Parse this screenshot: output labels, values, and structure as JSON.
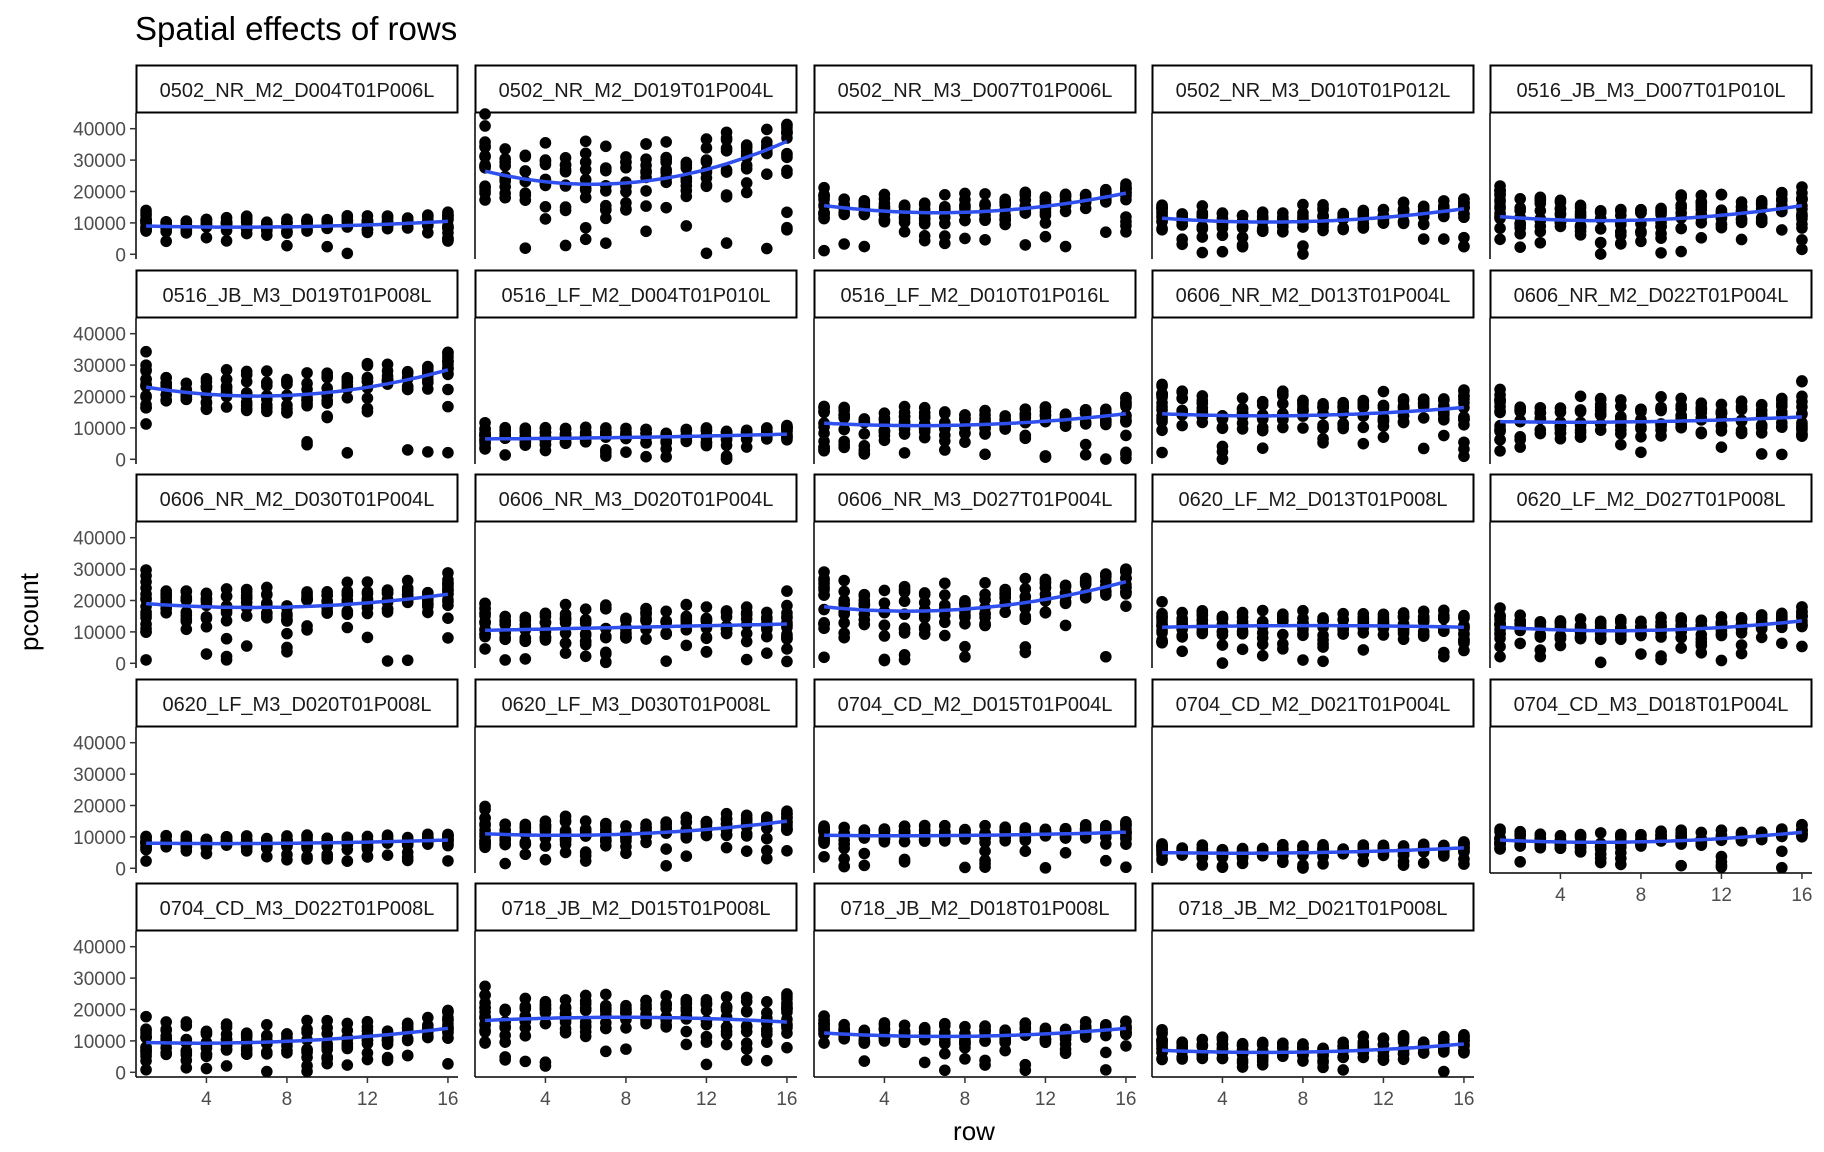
{
  "chart_data": {
    "type": "scatter",
    "title": "Spatial effects of rows",
    "xlabel": "row",
    "ylabel": "pcount",
    "xlim": [
      0.5,
      16.5
    ],
    "ylim": [
      -1500,
      45000
    ],
    "x_ticks": [
      4,
      8,
      12,
      16
    ],
    "y_ticks": [
      0,
      10000,
      20000,
      30000,
      40000
    ],
    "y_tick_labels": [
      "0",
      "10000",
      "20000",
      "30000",
      "40000"
    ],
    "smooth_color": "#3050ee",
    "point_color": "#000000",
    "facets": [
      {
        "label": "0502_NR_M2_D004T01P006L",
        "trend": [
          9000,
          8800,
          10500
        ],
        "max": 14000,
        "min": 0
      },
      {
        "label": "0502_NR_M2_D019T01P004L",
        "trend": [
          26500,
          23000,
          36000
        ],
        "max": 45000,
        "min": 0
      },
      {
        "label": "0502_NR_M3_D007T01P006L",
        "trend": [
          15500,
          13500,
          19500
        ],
        "max": 23000,
        "min": 1000
      },
      {
        "label": "0502_NR_M3_D010T01P012L",
        "trend": [
          11500,
          10500,
          14500
        ],
        "max": 19000,
        "min": 0
      },
      {
        "label": "0516_JB_M3_D007T01P010L",
        "trend": [
          12000,
          11000,
          15500
        ],
        "max": 23000,
        "min": 0
      },
      {
        "label": "0516_JB_M3_D019T01P008L",
        "trend": [
          23000,
          20500,
          28500
        ],
        "max": 35000,
        "min": 0
      },
      {
        "label": "0516_LF_M2_D004T01P010L",
        "trend": [
          6500,
          7000,
          8000
        ],
        "max": 12000,
        "min": 0
      },
      {
        "label": "0516_LF_M2_D010T01P016L",
        "trend": [
          11500,
          11000,
          14500
        ],
        "max": 21000,
        "min": 0
      },
      {
        "label": "0606_NR_M2_D013T01P004L",
        "trend": [
          14500,
          14000,
          16500
        ],
        "max": 26000,
        "min": 0
      },
      {
        "label": "0606_NR_M2_D022T01P004L",
        "trend": [
          12000,
          12000,
          13500
        ],
        "max": 25000,
        "min": 0
      },
      {
        "label": "0606_NR_M2_D030T01P004L",
        "trend": [
          19000,
          18000,
          22000
        ],
        "max": 30000,
        "min": 0
      },
      {
        "label": "0606_NR_M3_D020T01P004L",
        "trend": [
          10500,
          11500,
          12500
        ],
        "max": 23000,
        "min": 0
      },
      {
        "label": "0606_NR_M3_D027T01P004L",
        "trend": [
          18000,
          17500,
          26000
        ],
        "max": 33000,
        "min": 0
      },
      {
        "label": "0620_LF_M2_D013T01P008L",
        "trend": [
          11500,
          12000,
          11500
        ],
        "max": 20000,
        "min": 0
      },
      {
        "label": "0620_LF_M2_D027T01P008L",
        "trend": [
          11500,
          10500,
          13500
        ],
        "max": 18000,
        "min": 0
      },
      {
        "label": "0620_LF_M3_D020T01P008L",
        "trend": [
          8000,
          8000,
          9000
        ],
        "max": 12000,
        "min": 2000
      },
      {
        "label": "0620_LF_M3_D030T01P008L",
        "trend": [
          11000,
          11000,
          15000
        ],
        "max": 20000,
        "min": 0
      },
      {
        "label": "0704_CD_M2_D015T01P004L",
        "trend": [
          10500,
          10500,
          11500
        ],
        "max": 15500,
        "min": 0
      },
      {
        "label": "0704_CD_M2_D021T01P004L",
        "trend": [
          5000,
          5000,
          6500
        ],
        "max": 9000,
        "min": 0
      },
      {
        "label": "0704_CD_M3_D018T01P004L",
        "trend": [
          9000,
          8500,
          11500
        ],
        "max": 14000,
        "min": 0
      },
      {
        "label": "0704_CD_M3_D022T01P008L",
        "trend": [
          9500,
          10000,
          14000
        ],
        "max": 20000,
        "min": 0
      },
      {
        "label": "0718_JB_M2_D015T01P008L",
        "trend": [
          16500,
          17500,
          16000
        ],
        "max": 30000,
        "min": 0
      },
      {
        "label": "0718_JB_M2_D018T01P008L",
        "trend": [
          12500,
          11500,
          14000
        ],
        "max": 18000,
        "min": 0
      },
      {
        "label": "0718_JB_M2_D021T01P008L",
        "trend": [
          7000,
          6500,
          9000
        ],
        "max": 14000,
        "min": 0
      }
    ]
  }
}
